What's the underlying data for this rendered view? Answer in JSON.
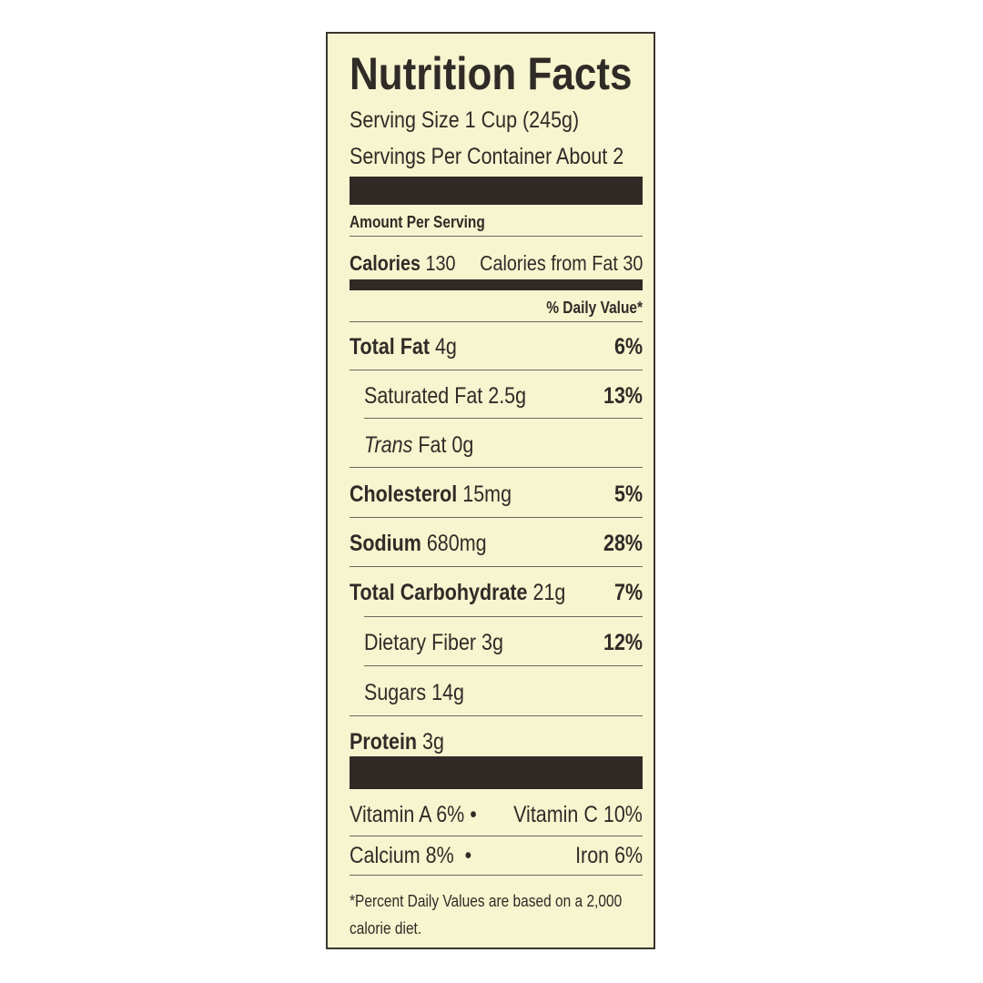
{
  "title": "Nutrition Facts",
  "serving_size": "Serving Size 1 Cup (245g)",
  "servings_per_container": "Servings Per Container About 2",
  "amount_per_serving": "Amount Per Serving",
  "calories": {
    "label": "Calories",
    "value": "130",
    "from_fat": "Calories from Fat 30"
  },
  "daily_value_header": "% Daily Value*",
  "nutrients": [
    {
      "label": "Total Fat",
      "amount": "4g",
      "dv": "6%"
    },
    {
      "label": "Saturated Fat",
      "amount": "2.5g",
      "dv": "13%"
    },
    {
      "label": "Trans",
      "amount": "Fat 0g",
      "dv": ""
    },
    {
      "label": "Cholesterol",
      "amount": "15mg",
      "dv": "5%"
    },
    {
      "label": "Sodium",
      "amount": "680mg",
      "dv": "28%"
    },
    {
      "label": "Total Carbohydrate",
      "amount": "21g",
      "dv": "7%"
    },
    {
      "label": "Dietary Fiber",
      "amount": "3g",
      "dv": "12%"
    },
    {
      "label": "Sugars",
      "amount": "14g",
      "dv": ""
    },
    {
      "label": "Protein",
      "amount": "3g",
      "dv": ""
    }
  ],
  "vitamins": {
    "row1_left": "Vitamin A 6%",
    "row1_right": "Vitamin C 10%",
    "row2_left": "Calcium 8%",
    "row2_right": "Iron 6%",
    "bullet": "•"
  },
  "footnote_line1": "*Percent Daily Values are based on a 2,000",
  "footnote_line2": "calorie diet.",
  "colors": {
    "panel": "#f7f5cf",
    "ink": "#2f2b27"
  }
}
